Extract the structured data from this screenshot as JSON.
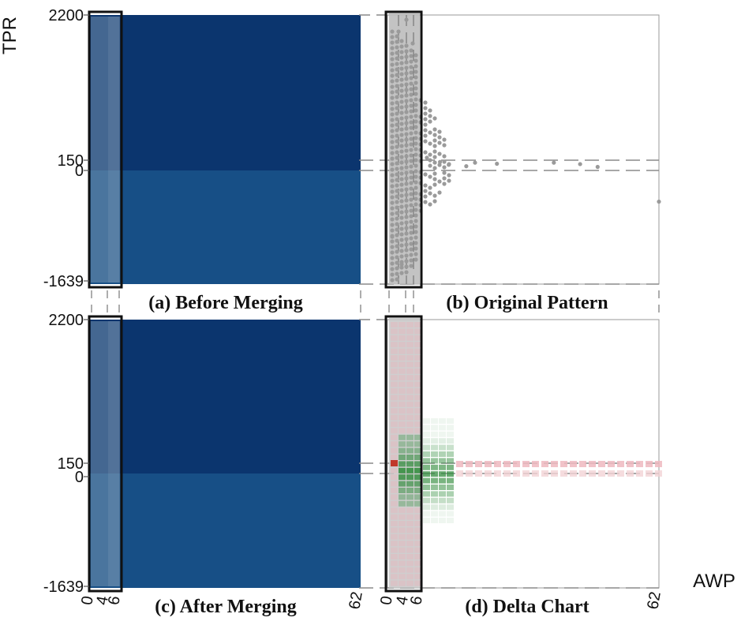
{
  "chart_data": {
    "type": "heatmap",
    "ylabel": "TPR",
    "xlabel": "AWP",
    "y_ticks": [
      "2200",
      "150",
      "0",
      "-1639"
    ],
    "x_ticks": [
      "0",
      "4",
      "6",
      "62"
    ],
    "xlim": [
      0,
      62
    ],
    "ylim": [
      -1639,
      2200
    ],
    "highlight_x_range": [
      0,
      6
    ],
    "reference_lines_y": [
      150,
      0
    ],
    "colors": {
      "dark_band": "#0b356e",
      "light_band": "#174f86",
      "highlight_box": "#8aa3bc",
      "scatter_point": "#9a9a9a",
      "delta_positive": "#2e8b3a",
      "delta_negative": "#c0392b"
    },
    "panels": [
      {
        "id": "a",
        "caption": "(a) Before Merging",
        "kind": "regions"
      },
      {
        "id": "b",
        "caption": "(b) Original Pattern",
        "kind": "scatter",
        "outliers": [
          [
            9,
            180
          ],
          [
            12,
            120
          ],
          [
            14,
            80
          ],
          [
            18,
            60
          ],
          [
            20,
            110
          ],
          [
            25,
            95
          ],
          [
            38,
            110
          ],
          [
            44,
            90
          ],
          [
            48,
            50
          ],
          [
            62,
            -450
          ]
        ]
      },
      {
        "id": "c",
        "caption": "(c) After Merging",
        "kind": "regions"
      },
      {
        "id": "d",
        "caption": "(d) Delta Chart",
        "kind": "delta"
      }
    ]
  }
}
